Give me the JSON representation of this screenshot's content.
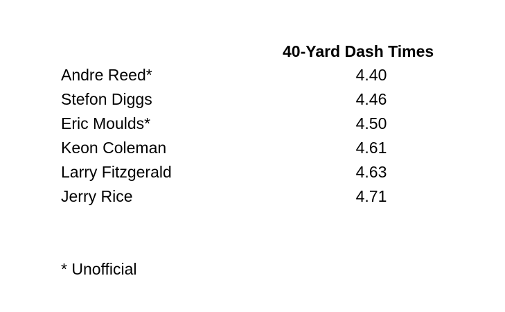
{
  "header": {
    "title": "40-Yard Dash Times"
  },
  "rows": [
    {
      "name": "Andre Reed*",
      "time": "4.40"
    },
    {
      "name": "Stefon Diggs",
      "time": "4.46"
    },
    {
      "name": "Eric Moulds*",
      "time": "4.50"
    },
    {
      "name": "Keon Coleman",
      "time": "4.61"
    },
    {
      "name": "Larry Fitzgerald",
      "time": "4.63"
    },
    {
      "name": "Jerry Rice",
      "time": "4.71"
    }
  ],
  "footnote": "* Unofficial"
}
